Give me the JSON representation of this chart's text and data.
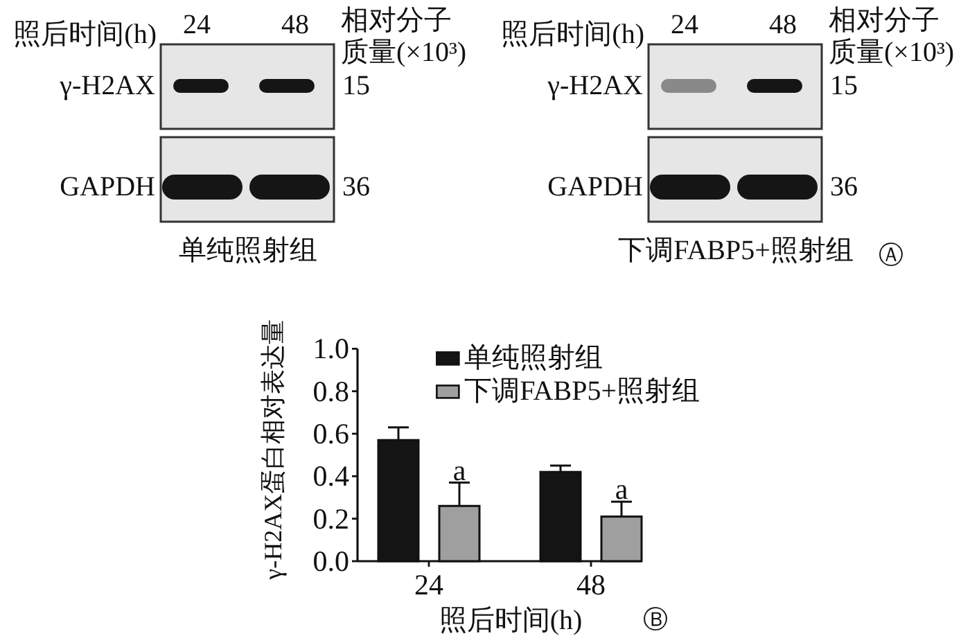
{
  "chart_data": [
    {
      "type": "other",
      "annotations": [
        "照后时间(h)",
        "24",
        "48",
        "相对分子质量(×10³)",
        "γ-H2AX",
        "15",
        "GAPDH",
        "36",
        "单纯照射组"
      ]
    },
    {
      "type": "other",
      "annotations": [
        "照后时间(h)",
        "24",
        "48",
        "相对分子质量(×10³)",
        "γ-H2AX",
        "15",
        "GAPDH",
        "36",
        "下调FABP5+照射组",
        "Ⓐ"
      ]
    },
    {
      "type": "bar",
      "xlabel": "照后时间(h)",
      "ylabel": "γ-H2AX蛋白相对表达量",
      "categories": [
        "24",
        "48"
      ],
      "series": [
        {
          "name": "单纯照射组",
          "color": "#141414",
          "values": [
            0.57,
            0.42
          ],
          "errors": [
            0.06,
            0.03
          ]
        },
        {
          "name": "下调FABP5+照射组",
          "color": "#a09fa0",
          "values": [
            0.26,
            0.21
          ],
          "errors": [
            0.11,
            0.07
          ]
        }
      ],
      "ylim": [
        0,
        1.0
      ],
      "yticks": [
        {
          "value": 0,
          "label": "0.0"
        },
        0.2,
        0.4,
        0.6,
        0.8,
        {
          "value": 1.0,
          "label": "1.0"
        }
      ],
      "legend": "top right",
      "annotations": [
        "a",
        "a",
        "Ⓑ"
      ]
    }
  ]
}
